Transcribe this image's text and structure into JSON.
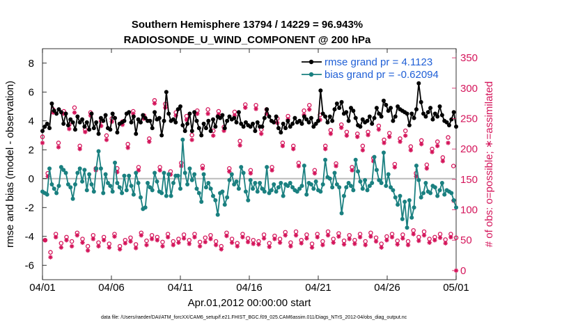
{
  "chart_data": {
    "type": "line",
    "title": "Southern Hemisphere 13794 / 14229 = 96.943%",
    "subtitle": "RADIOSONDE_U_WIND_COMPONENT @ 200 hPa",
    "xlabel": "Apr.01,2012 00:00:00 start",
    "ylabel_left": "rmse and bias (model - observation)",
    "ylabel_right": "# of obs: o=possible; ∗=assimilated",
    "footnote": "data file: /Users/raeder/DAI/ATM_forcXX/CAM6_setup/f.e21.FHIST_BGC.f09_025.CAM6assim.011/Diags_NTrS_2012-04/obs_diag_output.nc",
    "x_tick_labels": [
      "04/01",
      "04/06",
      "04/11",
      "04/16",
      "04/21",
      "04/26",
      "05/01"
    ],
    "xlim_days": [
      0,
      30
    ],
    "ylim_left": [
      -7,
      9
    ],
    "y_ticks_left": [
      -6,
      -4,
      -2,
      0,
      2,
      4,
      6,
      8
    ],
    "ylim_right": [
      -15,
      365
    ],
    "y_ticks_right": [
      0,
      50,
      100,
      150,
      200,
      250,
      300,
      350
    ],
    "colors": {
      "rmse": "#000000",
      "bias": "#1a8080",
      "obs": "#d4145a",
      "zero_line": "#bbbbbb",
      "legend_text": "#1f5fd6"
    },
    "series": [
      {
        "name": "rmse grand pr = 4.1123",
        "axis": "left",
        "values": [
          3.3,
          3.6,
          3.8,
          3.5,
          5.2,
          4.7,
          4.5,
          4.8,
          4.6,
          3.8,
          4.5,
          3.7,
          4.1,
          3.9,
          3.4,
          4.3,
          3.9,
          4.1,
          3.6,
          3.9,
          3.4,
          4.5,
          3.5,
          3.9,
          3.1,
          4.2,
          4.0,
          4.4,
          3.5,
          3.4,
          4.5,
          4.2,
          3.2,
          3.8,
          3.9,
          4.0,
          4.5,
          4.6,
          3.9,
          4.3,
          3.1,
          4.1,
          3.9,
          4.4,
          4.2,
          4.0,
          4.0,
          3.5,
          4.6,
          4.1,
          4.2,
          3.0,
          4.0,
          6.0,
          4.5,
          4.0,
          4.1,
          3.9,
          4.8,
          5.0,
          3.7,
          3.3,
          3.8,
          4.5,
          3.3,
          4.6,
          4.0,
          3.5,
          3.0,
          3.8,
          3.5,
          4.0,
          3.3,
          4.1,
          3.6,
          4.3,
          4.2,
          4.4,
          3.5,
          4.0,
          4.3,
          4.1,
          4.2,
          3.9,
          4.6,
          3.8,
          3.6,
          3.9,
          3.7,
          3.6,
          3.8,
          3.3,
          3.9,
          3.6,
          3.6,
          4.2,
          4.8,
          4.3,
          4.0,
          3.9,
          4.3,
          3.5,
          3.2,
          3.8,
          3.5,
          4.0,
          3.6,
          3.8,
          4.2,
          3.9,
          4.0,
          3.8,
          4.3,
          4.1,
          3.9,
          4.2,
          3.6,
          3.8,
          4.0,
          6.1,
          4.5,
          4.3,
          3.9,
          4.3,
          4.0,
          4.8,
          5.2,
          4.9,
          5.3,
          4.5,
          4.6,
          4.0,
          4.9,
          4.7,
          4.2,
          3.7,
          3.6,
          4.1,
          3.9,
          4.0,
          4.3,
          3.8,
          4.2,
          4.9,
          4.5,
          4.3,
          5.4,
          5.1,
          4.7,
          4.9,
          4.0,
          4.3,
          5.0,
          4.8,
          4.7,
          4.6,
          4.5,
          3.7,
          4.5,
          4.2,
          4.8,
          6.6,
          5.3,
          4.5,
          4.3,
          4.6,
          4.9,
          4.1,
          4.5,
          4.3,
          5.0,
          4.4,
          4.0,
          3.9,
          3.7,
          4.1,
          4.6,
          3.6
        ]
      },
      {
        "name": "bias grand pr = -0.62094",
        "axis": "left",
        "values": [
          -0.9,
          -1.0,
          -1.1,
          0.7,
          -0.4,
          -0.7,
          -1.0,
          -0.5,
          0.8,
          0.6,
          0.4,
          -0.4,
          -0.6,
          -1.4,
          -0.4,
          0.4,
          0.7,
          -0.2,
          0.6,
          -0.8,
          0.3,
          -0.4,
          -0.9,
          0.7,
          1.9,
          0.7,
          -1.0,
          0.3,
          -0.3,
          -0.5,
          -0.9,
          1.1,
          -0.3,
          -0.6,
          -1.0,
          0.2,
          -0.8,
          0.2,
          -0.5,
          -1.1,
          0.4,
          -0.3,
          -1.3,
          -2.1,
          -2.0,
          -0.3,
          -0.6,
          -0.8,
          0.4,
          -0.2,
          -0.9,
          -1.0,
          0.4,
          -1.2,
          0.3,
          -1.2,
          -0.3,
          0.2,
          0.2,
          -0.7,
          2.7,
          0.4,
          -0.4,
          0.7,
          -0.1,
          0.3,
          -0.7,
          -1.0,
          -1.6,
          0.3,
          -0.6,
          -0.3,
          -0.7,
          -1.2,
          -1.5,
          -2.5,
          -1.0,
          -0.9,
          -1.8,
          -1.3,
          -0.1,
          0.3,
          -0.4,
          -0.2,
          -0.7,
          0.8,
          0.4,
          -0.9,
          -1.5,
          -0.1,
          -0.7,
          -0.3,
          -0.9,
          -0.3,
          -0.7,
          -0.9,
          0.8,
          -1.0,
          -0.8,
          -0.4,
          -0.9,
          -0.6,
          -0.3,
          -1.2,
          -0.4,
          -0.5,
          -0.3,
          -0.6,
          -0.8,
          -0.9,
          -0.7,
          -0.5,
          0.9,
          -1.1,
          -0.3,
          -0.4,
          -0.7,
          -0.2,
          -0.8,
          -0.9,
          -0.4,
          1.3,
          0.1,
          0.0,
          -0.6,
          0.4,
          -0.4,
          -0.6,
          -2.4,
          -1.2,
          -0.6,
          -0.3,
          -0.5,
          -0.8,
          1.3,
          0.5,
          -0.2,
          -0.7,
          -0.1,
          -0.8,
          -0.5,
          -0.3,
          1.5,
          0.6,
          -0.1,
          -0.3,
          1.8,
          -0.5,
          0.3,
          -0.6,
          -0.8,
          -1.3,
          -1.8,
          -1.2,
          -2.8,
          -1.6,
          -3.4,
          -1.5,
          -2.7,
          -2.0,
          0.9,
          -0.1,
          -1.3,
          -1.0,
          -0.3,
          -0.9,
          -1.0,
          -0.5,
          -0.6,
          -1.2,
          -0.8,
          -0.3,
          -1.1,
          -0.8,
          -0.9,
          -1.0,
          -1.5,
          -2.0
        ]
      },
      {
        "name": "obs possible (o)",
        "axis": "right",
        "values": [
          220,
          50,
          160,
          30,
          265,
          60,
          210,
          45,
          262,
          55,
          240,
          48,
          268,
          62,
          205,
          52,
          232,
          40,
          260,
          58,
          168,
          46,
          246,
          55,
          222,
          44,
          250,
          60,
          168,
          40,
          245,
          50,
          208,
          54,
          262,
          43,
          170,
          62,
          255,
          49,
          217,
          58,
          280,
          55,
          170,
          47,
          274,
          60,
          163,
          48,
          260,
          52,
          177,
          59,
          254,
          50,
          223,
          60,
          263,
          47,
          172,
          54,
          265,
          58,
          230,
          48,
          262,
          40,
          236,
          62,
          168,
          52,
          261,
          45,
          213,
          60,
          273,
          53,
          165,
          50,
          272,
          48,
          232,
          59,
          265,
          45,
          170,
          57,
          250,
          52,
          210,
          63,
          254,
          46,
          205,
          64,
          177,
          50,
          263,
          59,
          272,
          44,
          165,
          60,
          256,
          48,
          205,
          64,
          231,
          52,
          176,
          61,
          240,
          49,
          228,
          58,
          170,
          50,
          225,
          60,
          205,
          48,
          228,
          62,
          185,
          54,
          238,
          44,
          215,
          56,
          226,
          60,
          175,
          49,
          217,
          59,
          230,
          48,
          204,
          66,
          160,
          55,
          214,
          64,
          174,
          52,
          200,
          55,
          212,
          60,
          186,
          51,
          219,
          60,
          172,
          54
        ]
      },
      {
        "name": "obs assimilated (*)",
        "axis": "right",
        "values": [
          210,
          50,
          155,
          22,
          260,
          55,
          203,
          38,
          258,
          50,
          233,
          40,
          260,
          58,
          200,
          46,
          228,
          33,
          255,
          52,
          165,
          40,
          238,
          50,
          215,
          38,
          245,
          56,
          162,
          35,
          240,
          45,
          202,
          48,
          258,
          37,
          165,
          58,
          250,
          42,
          212,
          52,
          275,
          50,
          165,
          40,
          268,
          55,
          158,
          42,
          255,
          46,
          172,
          53,
          248,
          44,
          215,
          55,
          258,
          40,
          168,
          47,
          258,
          52,
          222,
          42,
          257,
          35,
          230,
          57,
          163,
          46,
          255,
          40,
          206,
          55,
          268,
          47,
          160,
          44,
          266,
          43,
          225,
          53,
          258,
          39,
          165,
          52,
          243,
          46,
          205,
          58,
          249,
          40,
          200,
          58,
          172,
          45,
          256,
          53,
          265,
          38,
          160,
          55,
          248,
          42,
          200,
          58,
          225,
          46,
          172,
          56,
          235,
          43,
          222,
          52,
          165,
          44,
          220,
          55,
          198,
          42,
          223,
          56,
          180,
          48,
          232,
          38,
          210,
          50,
          220,
          55,
          170,
          43,
          212,
          53,
          222,
          42,
          198,
          60,
          155,
          49,
          208,
          58,
          168,
          46,
          195,
          50,
          205,
          54,
          180,
          45,
          210,
          55,
          115,
          0
        ]
      }
    ],
    "legend_position": "top-right"
  }
}
